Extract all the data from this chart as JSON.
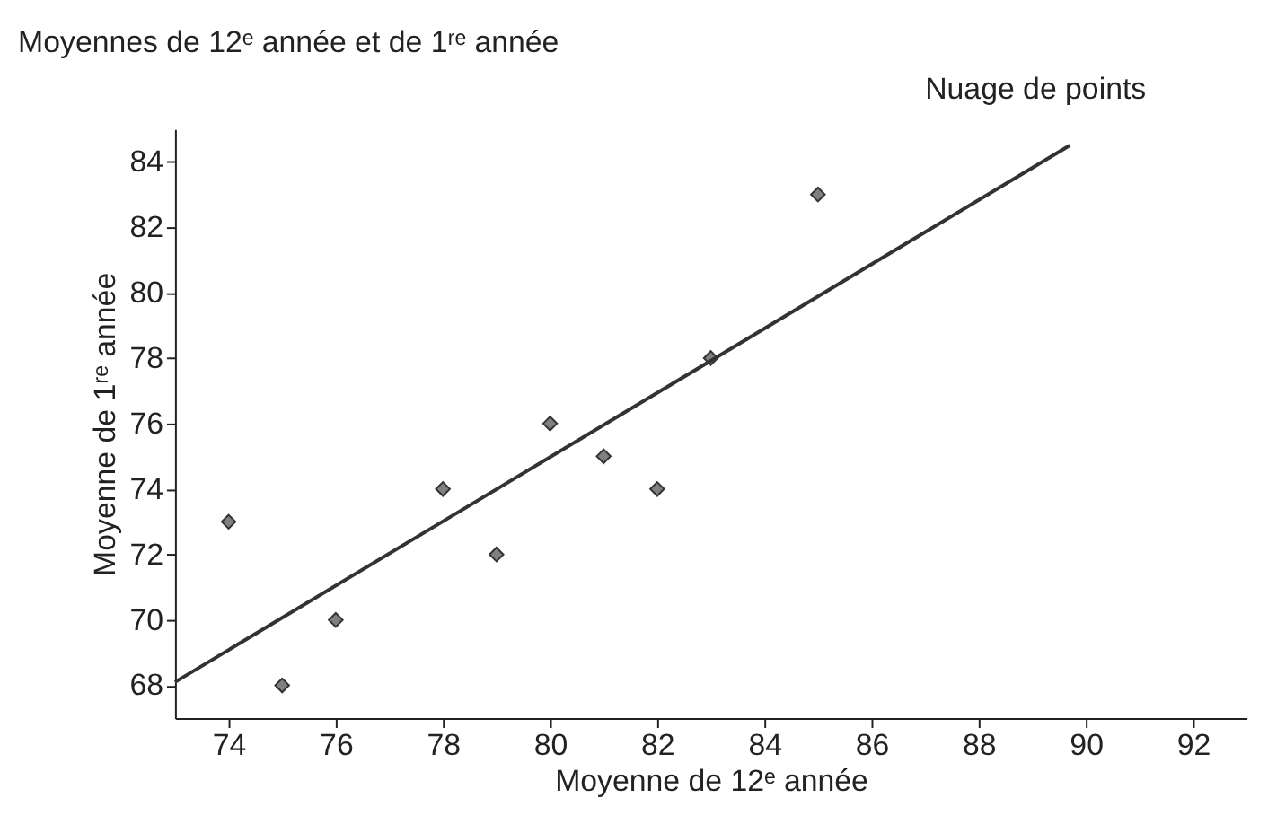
{
  "chart_data": {
    "type": "scatter",
    "title": "Moyennes de 12ᵉ année et de 1ʳᵉ année",
    "annotations": [
      "Nuage de points"
    ],
    "xlabel": "Moyenne de 12ᵉ année",
    "ylabel": "Moyenne de 1ʳᵉ année",
    "x": [
      74,
      75,
      76,
      78,
      79,
      80,
      81,
      82,
      83,
      85
    ],
    "series": [
      {
        "color": "#808080",
        "marker": "diamond",
        "values": [
          73,
          68,
          70,
          74,
          72,
          76,
          75,
          74,
          78,
          83
        ]
      },
      {
        "type": "line",
        "color": "#333333",
        "marker": "none",
        "line_style": "solid",
        "x": [
          73,
          89.7
        ],
        "values": [
          68.1,
          84.5
        ]
      }
    ],
    "xlim": [
      73,
      93
    ],
    "xticks": [
      74,
      76,
      78,
      80,
      82,
      84,
      86,
      88,
      90,
      92
    ],
    "ylim": [
      67,
      85
    ],
    "yticks": [
      68,
      70,
      72,
      74,
      76,
      78,
      80,
      82,
      84
    ],
    "grid": false
  }
}
